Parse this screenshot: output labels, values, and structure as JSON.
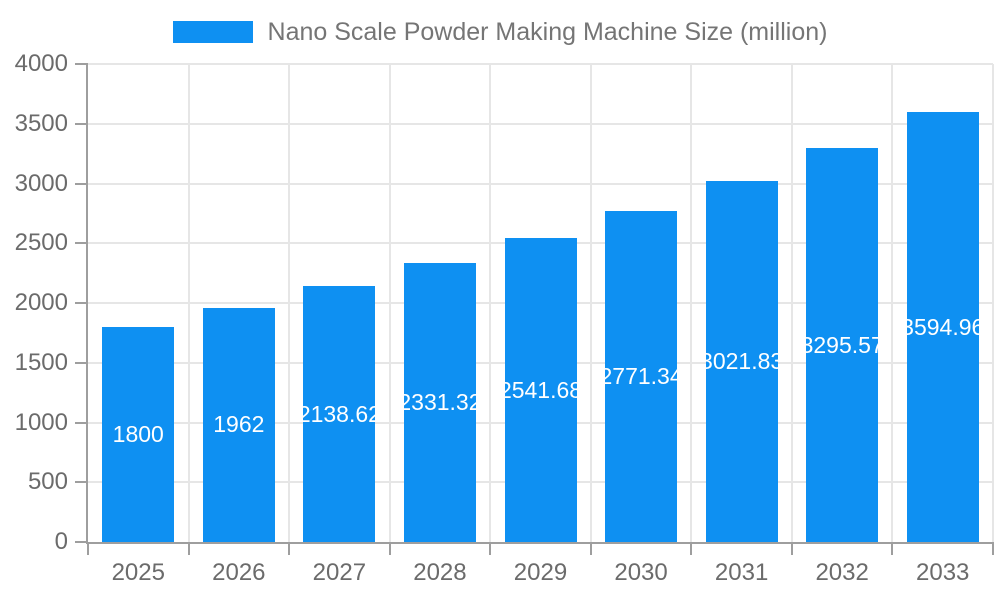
{
  "chart_data": {
    "type": "bar",
    "title": "Nano Scale Powder Making Machine Size (million)",
    "legend": [
      "Nano Scale Powder Making Machine Size (million)"
    ],
    "legend_position": "top",
    "categories": [
      "2025",
      "2026",
      "2027",
      "2028",
      "2029",
      "2030",
      "2031",
      "2032",
      "2033"
    ],
    "values": [
      1800,
      1962,
      2138.62,
      2331.32,
      2541.68,
      2771.34,
      3021.83,
      3295.57,
      3594.96
    ],
    "bar_labels": [
      "1800",
      "1962",
      "2138.62",
      "2331.32",
      "2541.68",
      "2771.34",
      "3021.83",
      "3295.57",
      "3594.96"
    ],
    "xlabel": "",
    "ylabel": "",
    "ylim": [
      0,
      4000
    ],
    "ytick_step": 500,
    "ytick_labels": [
      "0",
      "500",
      "1000",
      "1500",
      "2000",
      "2500",
      "3000",
      "3500",
      "4000"
    ],
    "grid": true,
    "colors": {
      "bar": "#0e90f2",
      "bar_label": "#ffffff",
      "grid": "#e6e6e6",
      "axis": "#9e9e9e",
      "tick_label": "#6b6b6b",
      "legend_text": "#757575",
      "background": "#ffffff"
    }
  }
}
